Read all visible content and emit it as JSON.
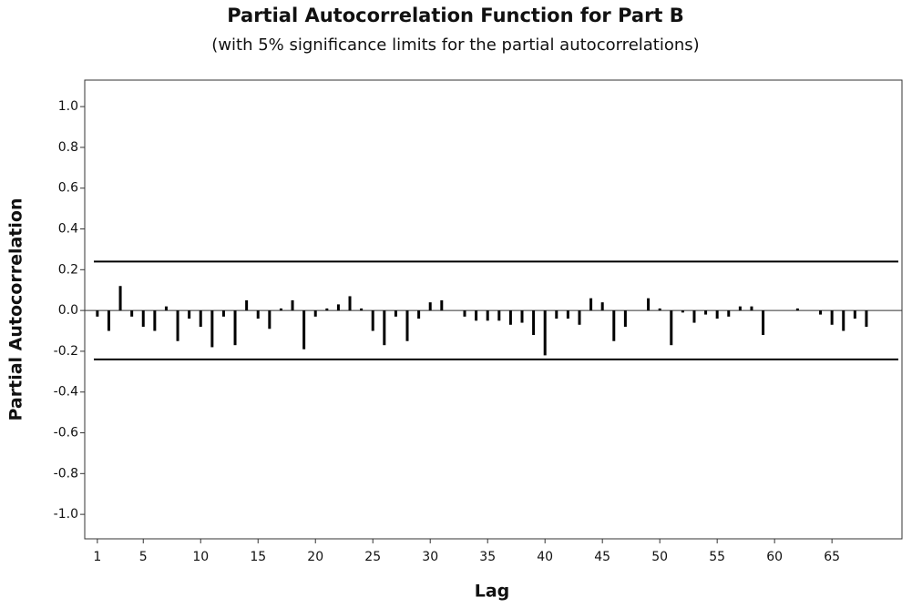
{
  "chart_data": {
    "type": "pacf",
    "title": "Partial Autocorrelation Function for Part B",
    "subtitle": "(with 5% significance limits for the partial autocorrelations)",
    "x_label": "Lag",
    "y_label": "Partial Autocorrelation",
    "x": [
      1,
      2,
      3,
      4,
      5,
      6,
      7,
      8,
      9,
      10,
      11,
      12,
      13,
      14,
      15,
      16,
      17,
      18,
      19,
      20,
      21,
      22,
      23,
      24,
      25,
      26,
      27,
      28,
      29,
      30,
      31,
      32,
      33,
      34,
      35,
      36,
      37,
      38,
      39,
      40,
      41,
      42,
      43,
      44,
      45,
      46,
      47,
      48,
      49,
      50,
      51,
      52,
      53,
      54,
      55,
      56,
      57,
      58,
      59,
      60,
      61,
      62,
      63,
      64,
      65,
      66,
      67,
      68
    ],
    "values": [
      -0.03,
      -0.1,
      0.12,
      -0.03,
      -0.08,
      -0.1,
      0.02,
      -0.15,
      -0.04,
      -0.08,
      -0.18,
      -0.03,
      -0.17,
      0.05,
      -0.04,
      -0.09,
      0.01,
      0.05,
      -0.19,
      -0.03,
      0.01,
      0.03,
      0.07,
      0.01,
      -0.1,
      -0.17,
      -0.03,
      -0.15,
      -0.04,
      0.04,
      0.05,
      0.0,
      -0.03,
      -0.05,
      -0.05,
      -0.05,
      -0.07,
      -0.06,
      -0.12,
      -0.22,
      -0.04,
      -0.04,
      -0.07,
      0.06,
      0.04,
      -0.15,
      -0.08,
      0.0,
      0.06,
      0.01,
      -0.17,
      -0.01,
      -0.06,
      -0.02,
      -0.04,
      -0.03,
      0.02,
      0.02,
      -0.12,
      0.0,
      0.0,
      0.01,
      0.0,
      -0.02,
      -0.07,
      -0.1,
      -0.04,
      -0.08
    ],
    "color": "#000000",
    "significance_limits": [
      -0.24,
      0.24
    ],
    "xlim": [
      -0.1,
      71.1
    ],
    "ylim": [
      -1.12,
      1.13
    ],
    "xticks": [
      1,
      5,
      10,
      15,
      20,
      25,
      30,
      35,
      40,
      45,
      50,
      55,
      60,
      65
    ],
    "yticks": [
      {
        "value": 1.0,
        "label": "1.0"
      },
      0.8,
      0.6,
      0.4,
      0.2,
      {
        "value": 0.0,
        "label": "0.0"
      },
      -0.2,
      -0.4,
      -0.6,
      -0.8,
      {
        "value": -1.0,
        "label": "-1.0"
      }
    ]
  }
}
